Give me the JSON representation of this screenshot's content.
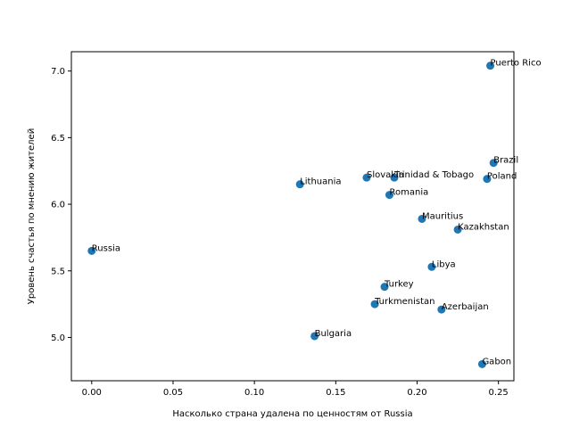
{
  "chart_data": {
    "type": "scatter",
    "title": "",
    "xlabel": "Насколько страна удалена по ценностям от Russia",
    "ylabel": "Уровень счастья по мнению жителей",
    "xlim": [
      -0.0125,
      0.2595
    ],
    "ylim": [
      4.675,
      7.145
    ],
    "xticks": [
      0.0,
      0.05,
      0.1,
      0.15,
      0.2,
      0.25
    ],
    "xtick_labels": [
      "0.00",
      "0.05",
      "0.10",
      "0.15",
      "0.20",
      "0.25"
    ],
    "yticks": [
      5.0,
      5.5,
      6.0,
      6.5,
      7.0
    ],
    "ytick_labels": [
      "5.0",
      "5.5",
      "6.0",
      "6.5",
      "7.0"
    ],
    "grid": false,
    "marker_color": "#1f77b4",
    "points": [
      {
        "label": "Russia",
        "x": 0.0,
        "y": 5.65
      },
      {
        "label": "Lithuania",
        "x": 0.128,
        "y": 6.15
      },
      {
        "label": "Bulgaria",
        "x": 0.137,
        "y": 5.01
      },
      {
        "label": "Slovakia",
        "x": 0.169,
        "y": 6.2
      },
      {
        "label": "Turkey",
        "x": 0.18,
        "y": 5.38
      },
      {
        "label": "Turkmenistan",
        "x": 0.174,
        "y": 5.25
      },
      {
        "label": "Romania",
        "x": 0.183,
        "y": 6.07
      },
      {
        "label": "Trinidad & Tobago",
        "x": 0.186,
        "y": 6.2
      },
      {
        "label": "Mauritius",
        "x": 0.203,
        "y": 5.89
      },
      {
        "label": "Libya",
        "x": 0.209,
        "y": 5.53
      },
      {
        "label": "Azerbaijan",
        "x": 0.215,
        "y": 5.21
      },
      {
        "label": "Kazakhstan",
        "x": 0.225,
        "y": 5.81
      },
      {
        "label": "Gabon",
        "x": 0.24,
        "y": 4.8
      },
      {
        "label": "Poland",
        "x": 0.243,
        "y": 6.19
      },
      {
        "label": "Puerto Rico",
        "x": 0.245,
        "y": 7.04
      },
      {
        "label": "Brazil",
        "x": 0.247,
        "y": 6.31
      }
    ]
  }
}
